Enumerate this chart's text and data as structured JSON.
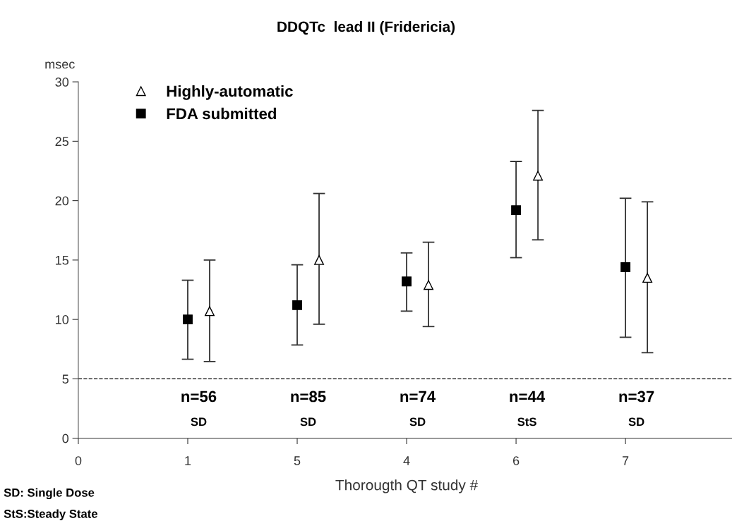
{
  "chart_data": {
    "type": "scatter",
    "title": "DDQTc  lead II (Fridericia)",
    "xlabel": "Thorougth QT study #",
    "ylabel": "msec",
    "categories": [
      "0",
      "1",
      "5",
      "4",
      "6",
      "7",
      null
    ],
    "ylim": [
      0,
      30
    ],
    "yticks": [
      0,
      5,
      10,
      15,
      20,
      25,
      30
    ],
    "series": [
      {
        "name": "Highly-automatic",
        "color": "#000000",
        "marker": "triangle",
        "values": [
          null,
          10.7,
          15.0,
          12.9,
          22.1,
          13.5,
          null
        ],
        "errors": [
          null,
          [
            6.45,
            15.0
          ],
          [
            9.6,
            20.6
          ],
          [
            9.4,
            16.5
          ],
          [
            16.7,
            27.6
          ],
          [
            7.2,
            19.9
          ],
          null
        ]
      },
      {
        "name": "FDA submitted",
        "color": "#000000",
        "marker": "square",
        "values": [
          null,
          10.0,
          11.2,
          13.2,
          19.2,
          14.4,
          null
        ],
        "errors": [
          null,
          [
            6.65,
            13.3
          ],
          [
            7.85,
            14.6
          ],
          [
            10.7,
            15.6
          ],
          [
            15.2,
            23.3
          ],
          [
            8.5,
            20.2
          ],
          null
        ]
      }
    ],
    "ref_lines": [
      {
        "axis": "y",
        "value": 5,
        "color": "#000000",
        "line_style": "dashed"
      }
    ],
    "legend": "top left",
    "grid": false,
    "annotations": [
      "n=56",
      "SD",
      "n=85",
      "SD",
      "n=74",
      "SD",
      "n=44",
      "StS",
      "n=37",
      "SD",
      "SD: Single Dose",
      "StS:Steady State"
    ]
  }
}
